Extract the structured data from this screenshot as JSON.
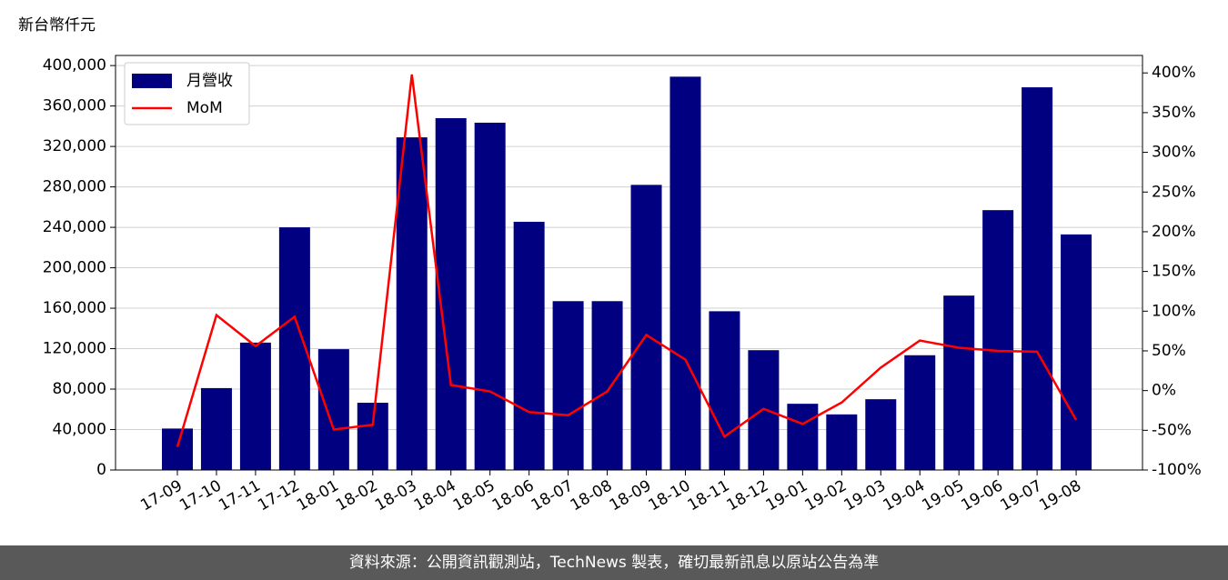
{
  "chart_data": {
    "type": "bar-line",
    "y_label": "新台幣仟元",
    "categories": [
      "17-09",
      "17-10",
      "17-11",
      "17-12",
      "18-01",
      "18-02",
      "18-03",
      "18-04",
      "18-05",
      "18-06",
      "18-07",
      "18-08",
      "18-09",
      "18-10",
      "18-11",
      "18-12",
      "19-01",
      "19-02",
      "19-03",
      "19-04",
      "19-05",
      "19-06",
      "19-07",
      "19-08"
    ],
    "series": [
      {
        "name": "月營收",
        "type": "bar",
        "color": "#000080",
        "values": [
          41000,
          81000,
          126000,
          240000,
          119500,
          66500,
          329000,
          348000,
          343500,
          245500,
          167000,
          167000,
          282000,
          389000,
          157000,
          118500,
          65500,
          55000,
          70000,
          113500,
          172500,
          257000,
          378500,
          233000
        ]
      },
      {
        "name": "MoM",
        "type": "line",
        "axis": "y2",
        "color": "#ff0000",
        "values": [
          -71,
          95,
          56,
          93,
          -49,
          -43,
          398,
          7,
          -1,
          -27,
          -31,
          -1,
          70,
          39,
          -58,
          -23,
          -42,
          -15,
          29,
          63,
          54,
          50,
          49,
          -37
        ]
      }
    ],
    "ylim": [
      0,
      410000
    ],
    "yticks": [
      0,
      {
        "value": 40000,
        "label": "40,000"
      },
      {
        "value": 80000,
        "label": "80,000"
      },
      {
        "value": 120000,
        "label": "120,000"
      },
      {
        "value": 160000,
        "label": "160,000"
      },
      {
        "value": 200000,
        "label": "200,000"
      },
      {
        "value": 240000,
        "label": "240,000"
      },
      {
        "value": 280000,
        "label": "280,000"
      },
      {
        "value": 320000,
        "label": "320,000"
      },
      {
        "value": 360000,
        "label": "360,000"
      },
      {
        "value": 400000,
        "label": "400,000"
      }
    ],
    "y2lim": [
      -100,
      422
    ],
    "y2ticks": [
      {
        "value": -100,
        "label": "-100%"
      },
      {
        "value": -50,
        "label": "-50%"
      },
      {
        "value": 0,
        "label": "0%"
      },
      {
        "value": 50,
        "label": "50%"
      },
      {
        "value": 100,
        "label": "100%"
      },
      {
        "value": 150,
        "label": "150%"
      },
      {
        "value": 200,
        "label": "200%"
      },
      {
        "value": 250,
        "label": "250%"
      },
      {
        "value": 300,
        "label": "300%"
      },
      {
        "value": 350,
        "label": "350%"
      },
      {
        "value": 400,
        "label": "400%"
      }
    ],
    "grid": true,
    "legend": "upper left"
  },
  "footer": "資料來源：公開資訊觀測站，TechNews 製表，確切最新訊息以原站公告為準"
}
